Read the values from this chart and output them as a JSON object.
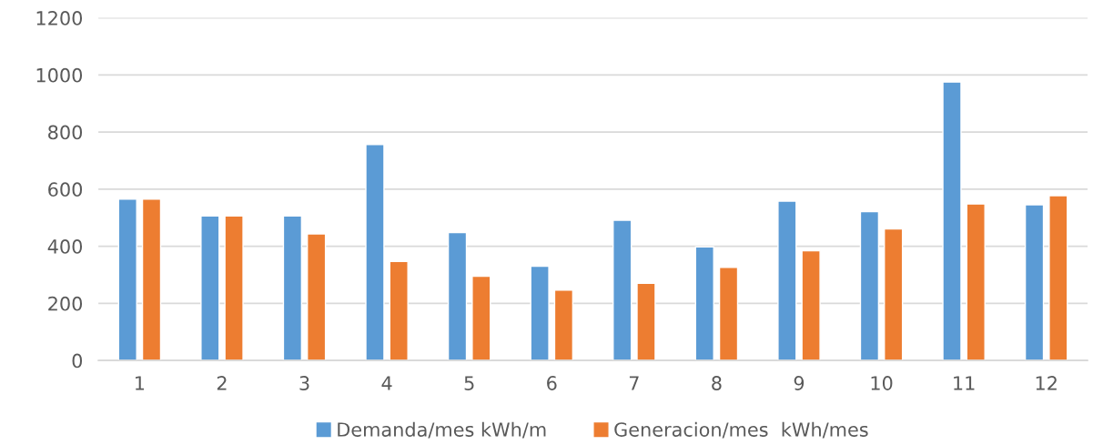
{
  "chart_data": {
    "type": "bar",
    "categories": [
      "1",
      "2",
      "3",
      "4",
      "5",
      "6",
      "7",
      "8",
      "9",
      "10",
      "11",
      "12"
    ],
    "series": [
      {
        "name": "Demanda/mes kWh/m",
        "color": "#5b9bd5",
        "values": [
          565,
          506,
          506,
          756,
          448,
          330,
          491,
          398,
          558,
          521,
          975,
          545
        ]
      },
      {
        "name": "Generacion/mes  kWh/mes",
        "color": "#ed7d31",
        "values": [
          565,
          506,
          443,
          347,
          295,
          246,
          270,
          326,
          384,
          461,
          548,
          577
        ]
      }
    ],
    "ylim": [
      0,
      1200
    ],
    "yticks": [
      0,
      200,
      400,
      600,
      800,
      1000,
      1200
    ],
    "grid": "y",
    "legend": "bottom"
  }
}
